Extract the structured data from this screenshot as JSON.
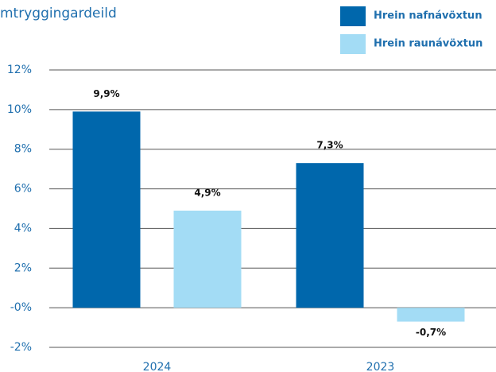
{
  "chart_data": {
    "type": "bar",
    "title": "mtryggingardeild",
    "categories": [
      "2024",
      "2023"
    ],
    "series": [
      {
        "name": "Hrein nafnávöxtun",
        "color": "#0067ac",
        "values": [
          9.9,
          7.3
        ],
        "value_labels": [
          "9,9%",
          "7,3%"
        ]
      },
      {
        "name": "Hrein raunávöxtun",
        "color": "#a3dcf5",
        "values": [
          4.9,
          -0.7
        ],
        "value_labels": [
          "4,9%",
          "-0,7%"
        ]
      }
    ],
    "ylim": [
      -2,
      12
    ],
    "yticks": [
      {
        "value": -2,
        "label": "-2%"
      },
      {
        "value": 0,
        "label": "-0%"
      },
      {
        "value": 2,
        "label": "2%"
      },
      {
        "value": 4,
        "label": "4%"
      },
      {
        "value": 6,
        "label": "6%"
      },
      {
        "value": 8,
        "label": "8%"
      },
      {
        "value": 10,
        "label": "10%"
      },
      {
        "value": 12,
        "label": "12%"
      }
    ],
    "grid": true,
    "legend": "top-right"
  }
}
